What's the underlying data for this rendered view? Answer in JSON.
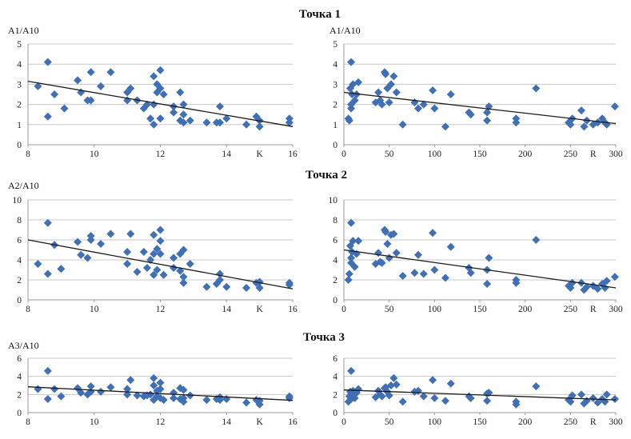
{
  "titles": [
    "Точка 1",
    "Точка 2",
    "Точка 3"
  ],
  "chart_data": [
    {
      "type": "scatter",
      "row": 1,
      "side": "left",
      "ylabel": "A1/A10",
      "xlabel": "K",
      "xlim": [
        8,
        16
      ],
      "ylim": [
        0,
        5
      ],
      "xticks": [
        8,
        10,
        12,
        14,
        16
      ],
      "yticks": [
        0,
        1,
        2,
        3,
        4,
        5
      ],
      "trendline": [
        [
          8,
          3.15
        ],
        [
          16,
          0.9
        ]
      ],
      "x": [
        8.3,
        8.6,
        8.6,
        8.8,
        9.1,
        9.5,
        9.6,
        9.8,
        9.9,
        9.9,
        10.2,
        10.5,
        11.0,
        11.0,
        11.1,
        11.3,
        11.5,
        11.6,
        11.7,
        11.8,
        11.8,
        11.8,
        11.9,
        11.9,
        12.0,
        12.0,
        12.0,
        12.1,
        12.4,
        12.4,
        12.6,
        12.6,
        12.7,
        12.7,
        12.7,
        12.9,
        13.4,
        13.7,
        13.8,
        13.8,
        14.0,
        14.6,
        14.9,
        15.0,
        15.0,
        15.9,
        15.9
      ],
      "y": [
        2.9,
        4.1,
        1.4,
        2.5,
        1.8,
        3.2,
        2.6,
        2.2,
        3.6,
        2.2,
        2.9,
        3.6,
        2.2,
        2.6,
        2.8,
        2.2,
        1.8,
        2.0,
        1.3,
        1.0,
        2.0,
        3.4,
        2.6,
        3.0,
        3.7,
        2.8,
        1.3,
        2.5,
        1.6,
        1.9,
        1.2,
        2.6,
        1.1,
        1.5,
        2.0,
        1.2,
        1.1,
        1.1,
        1.9,
        1.1,
        1.3,
        1.0,
        1.4,
        1.2,
        0.9,
        1.3,
        1.1
      ]
    },
    {
      "type": "scatter",
      "row": 1,
      "side": "right",
      "ylabel": "A1/A10",
      "xlabel": "R",
      "xlim": [
        0,
        300
      ],
      "ylim": [
        0,
        5
      ],
      "xticks": [
        0,
        50,
        100,
        150,
        200,
        250,
        300
      ],
      "yticks": [
        0,
        1,
        2,
        3,
        4,
        5
      ],
      "trendline": [
        [
          0,
          2.6
        ],
        [
          300,
          1.05
        ]
      ],
      "x": [
        5,
        6,
        7,
        8,
        8,
        8,
        9,
        10,
        12,
        14,
        16,
        35,
        38,
        40,
        42,
        45,
        46,
        48,
        50,
        52,
        55,
        58,
        65,
        78,
        82,
        88,
        98,
        100,
        112,
        118,
        138,
        140,
        158,
        158,
        160,
        190,
        190,
        212,
        248,
        250,
        252,
        262,
        265,
        268,
        275,
        280,
        285,
        288,
        290,
        299
      ],
      "y": [
        1.3,
        1.2,
        2.8,
        4.1,
        2.0,
        1.8,
        2.5,
        3.0,
        2.2,
        2.5,
        3.1,
        2.1,
        2.6,
        2.2,
        2.0,
        3.6,
        3.5,
        2.8,
        2.1,
        3.0,
        3.4,
        2.6,
        1.0,
        2.1,
        1.8,
        2.0,
        2.7,
        1.8,
        0.9,
        2.5,
        1.6,
        1.5,
        1.6,
        1.2,
        1.9,
        1.3,
        1.1,
        2.8,
        1.1,
        1.0,
        1.3,
        1.7,
        0.9,
        1.2,
        1.0,
        1.1,
        1.3,
        1.1,
        1.0,
        1.9
      ]
    },
    {
      "type": "scatter",
      "row": 2,
      "side": "left",
      "ylabel": "A2/A10",
      "xlabel": "K",
      "xlim": [
        8,
        16
      ],
      "ylim": [
        0,
        10
      ],
      "xticks": [
        8,
        10,
        12,
        14,
        16
      ],
      "yticks": [
        0,
        2,
        4,
        6,
        8,
        10
      ],
      "trendline": [
        [
          8,
          6.0
        ],
        [
          16,
          1.1
        ]
      ],
      "x": [
        8.3,
        8.6,
        8.6,
        8.8,
        9.0,
        9.5,
        9.6,
        9.8,
        9.9,
        9.9,
        10.2,
        10.5,
        11.0,
        11.0,
        11.1,
        11.3,
        11.5,
        11.6,
        11.7,
        11.8,
        11.8,
        11.8,
        11.9,
        11.9,
        12.0,
        12.0,
        12.0,
        12.1,
        12.4,
        12.4,
        12.6,
        12.6,
        12.7,
        12.7,
        12.7,
        12.9,
        13.4,
        13.7,
        13.8,
        13.8,
        14.0,
        14.6,
        14.9,
        15.0,
        15.0,
        15.9,
        15.9
      ],
      "y": [
        3.6,
        7.7,
        2.6,
        5.5,
        3.1,
        5.8,
        4.5,
        4.2,
        6.4,
        6.0,
        5.6,
        6.6,
        4.8,
        3.6,
        6.6,
        2.8,
        4.8,
        3.2,
        4.0,
        6.5,
        4.6,
        2.5,
        5.1,
        3.0,
        7.0,
        5.9,
        4.6,
        2.5,
        3.2,
        4.2,
        2.9,
        4.6,
        1.7,
        2.3,
        5.0,
        3.6,
        1.3,
        1.6,
        2.6,
        2.0,
        1.3,
        1.2,
        1.7,
        1.8,
        1.2,
        1.5,
        1.7
      ]
    },
    {
      "type": "scatter",
      "row": 2,
      "side": "right",
      "ylabel": "",
      "xlabel": "R",
      "xlim": [
        0,
        300
      ],
      "ylim": [
        0,
        10
      ],
      "xticks": [
        0,
        50,
        100,
        150,
        200,
        250,
        300
      ],
      "yticks": [
        0,
        2,
        4,
        6,
        8,
        10
      ],
      "trendline": [
        [
          0,
          5.0
        ],
        [
          300,
          1.2
        ]
      ],
      "x": [
        5,
        6,
        7,
        8,
        8,
        8,
        9,
        10,
        12,
        14,
        16,
        35,
        38,
        40,
        42,
        45,
        46,
        48,
        50,
        52,
        55,
        58,
        65,
        78,
        82,
        88,
        98,
        100,
        112,
        118,
        138,
        140,
        158,
        158,
        160,
        190,
        190,
        212,
        248,
        250,
        252,
        262,
        265,
        268,
        275,
        280,
        285,
        288,
        290,
        299
      ],
      "y": [
        2.0,
        2.6,
        5.4,
        7.7,
        4.2,
        3.7,
        4.8,
        5.9,
        3.3,
        4.6,
        5.9,
        3.6,
        4.7,
        3.8,
        3.7,
        7.0,
        6.8,
        5.6,
        4.2,
        6.5,
        6.6,
        4.7,
        2.4,
        2.7,
        4.5,
        2.6,
        6.7,
        3.0,
        2.2,
        5.3,
        3.2,
        2.7,
        3.0,
        1.6,
        4.2,
        1.7,
        2.0,
        6.0,
        1.4,
        1.2,
        1.7,
        1.7,
        1.0,
        1.3,
        1.4,
        1.1,
        1.6,
        1.2,
        1.9,
        2.3
      ]
    },
    {
      "type": "scatter",
      "row": 3,
      "side": "left",
      "ylabel": "A3/A10",
      "xlabel": "K",
      "xlim": [
        8,
        16
      ],
      "ylim": [
        0,
        6
      ],
      "xticks": [
        8,
        10,
        12,
        14,
        16
      ],
      "yticks": [
        0,
        2,
        4,
        6
      ],
      "trendline": [
        [
          8,
          2.85
        ],
        [
          16,
          1.35
        ]
      ],
      "x": [
        8.3,
        8.6,
        8.6,
        8.8,
        9.0,
        9.5,
        9.6,
        9.8,
        9.9,
        9.9,
        10.2,
        10.5,
        11.0,
        11.0,
        11.1,
        11.3,
        11.5,
        11.6,
        11.7,
        11.8,
        11.8,
        11.8,
        11.9,
        11.9,
        12.0,
        12.0,
        12.0,
        12.1,
        12.4,
        12.4,
        12.6,
        12.6,
        12.7,
        12.7,
        12.7,
        12.9,
        13.4,
        13.7,
        13.8,
        13.8,
        14.0,
        14.6,
        14.9,
        15.0,
        15.0,
        15.9,
        15.9
      ],
      "y": [
        2.6,
        4.6,
        1.5,
        2.6,
        1.8,
        2.7,
        2.2,
        2.0,
        2.9,
        2.3,
        2.3,
        2.8,
        2.0,
        2.6,
        3.6,
        1.9,
        1.8,
        1.9,
        2.0,
        3.8,
        3.0,
        1.4,
        2.4,
        1.8,
        3.3,
        2.6,
        1.6,
        1.4,
        1.6,
        2.2,
        1.5,
        2.7,
        1.2,
        1.6,
        2.5,
        1.9,
        1.4,
        1.5,
        1.7,
        1.4,
        1.5,
        1.1,
        1.4,
        1.3,
        0.9,
        1.8,
        1.6
      ]
    },
    {
      "type": "scatter",
      "row": 3,
      "side": "right",
      "ylabel": "",
      "xlabel": "R",
      "xlim": [
        0,
        300
      ],
      "ylim": [
        0,
        6
      ],
      "xticks": [
        0,
        50,
        100,
        150,
        200,
        250,
        300
      ],
      "yticks": [
        0,
        2,
        4,
        6
      ],
      "trendline": [
        [
          0,
          2.5
        ],
        [
          300,
          1.4
        ]
      ],
      "x": [
        5,
        6,
        7,
        8,
        8,
        8,
        9,
        10,
        12,
        14,
        16,
        35,
        38,
        40,
        42,
        45,
        46,
        48,
        50,
        52,
        55,
        58,
        65,
        78,
        82,
        88,
        98,
        100,
        112,
        118,
        138,
        140,
        158,
        158,
        160,
        190,
        190,
        212,
        248,
        250,
        252,
        262,
        265,
        268,
        275,
        280,
        285,
        288,
        290,
        299
      ],
      "y": [
        1.2,
        1.8,
        2.3,
        4.6,
        2.0,
        1.5,
        2.1,
        2.4,
        1.6,
        2.2,
        2.6,
        1.7,
        2.4,
        2.0,
        1.8,
        2.7,
        2.8,
        2.3,
        1.9,
        3.0,
        3.8,
        3.1,
        1.2,
        2.3,
        2.4,
        1.8,
        3.6,
        1.6,
        1.3,
        3.2,
        1.8,
        1.6,
        2.1,
        1.3,
        2.2,
        1.2,
        0.9,
        2.9,
        1.4,
        1.2,
        1.9,
        2.0,
        1.0,
        1.3,
        1.6,
        1.1,
        1.5,
        1.2,
        2.0,
        1.5
      ]
    }
  ]
}
